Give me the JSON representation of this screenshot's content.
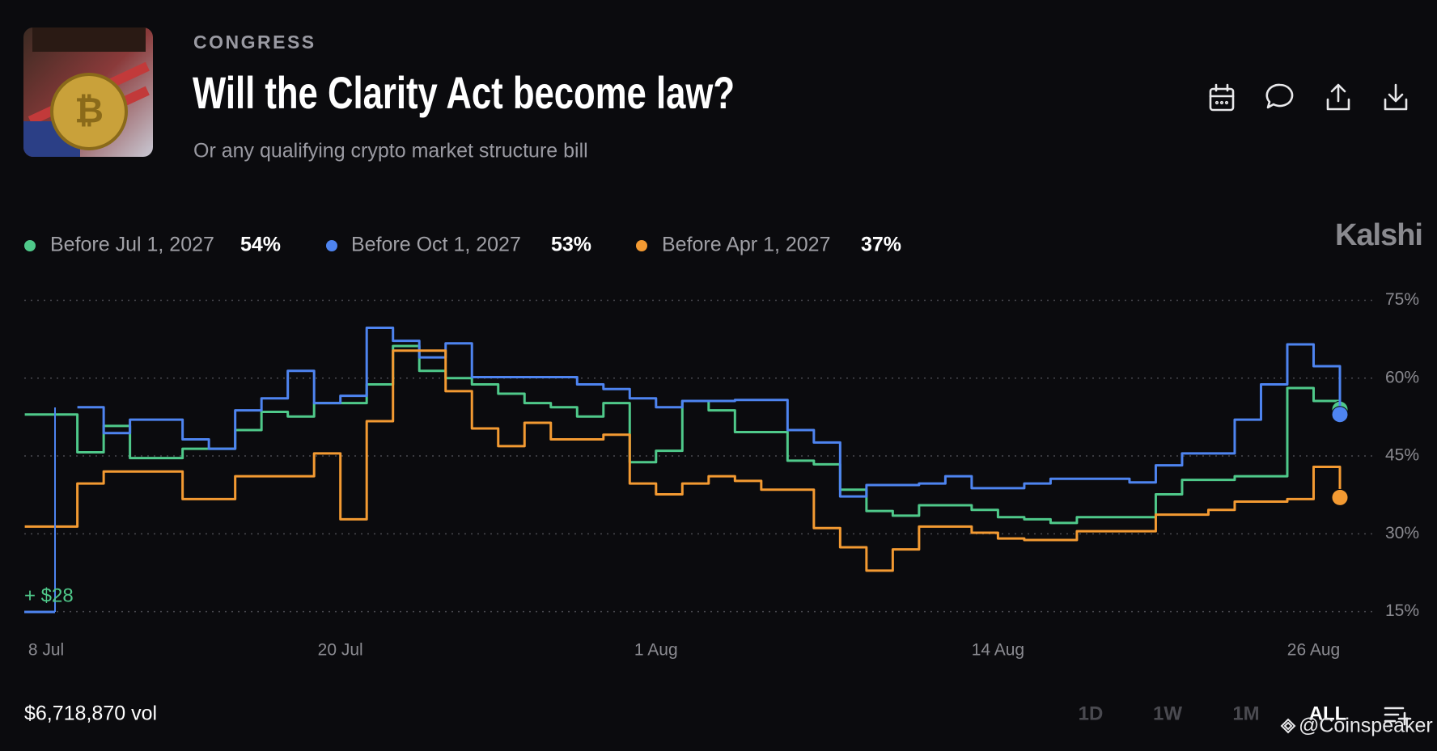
{
  "header": {
    "category": "CONGRESS",
    "title": "Will the Clarity Act become law?",
    "subtitle": "Or any qualifying crypto market structure bill",
    "brand": "Kalshi"
  },
  "chart_data": {
    "type": "line",
    "step": true,
    "categories": [
      "8 Jul",
      null,
      null,
      null,
      null,
      null,
      null,
      null,
      null,
      null,
      null,
      null,
      "20 Jul",
      null,
      null,
      null,
      null,
      null,
      null,
      null,
      null,
      null,
      null,
      null,
      "1 Aug",
      null,
      null,
      null,
      null,
      null,
      null,
      null,
      null,
      null,
      null,
      null,
      null,
      "14 Aug",
      null,
      null,
      null,
      null,
      null,
      null,
      null,
      null,
      null,
      null,
      null,
      "26 Aug",
      null
    ],
    "series": [
      {
        "name": "Before Jul 1, 2027",
        "color": "#4fc98a",
        "value_label": "54%",
        "values": [
          53,
          53,
          45.7,
          50.8,
          44.6,
          44.6,
          46.4,
          46.4,
          50,
          53.5,
          52.6,
          55.2,
          55.2,
          58.8,
          66.2,
          61.4,
          60,
          58.8,
          57,
          55.2,
          54.4,
          52.6,
          55.2,
          43.8,
          46,
          55.6,
          53.8,
          49.6,
          49.6,
          44.1,
          43.4,
          38.5,
          34.4,
          33.5,
          35.5,
          35.5,
          34.6,
          33.2,
          32.8,
          32.1,
          33.2,
          33.2,
          33.2,
          37.6,
          40.4,
          40.4,
          41.1,
          41.1,
          58.1,
          55.6,
          54
        ]
      },
      {
        "name": "Before Oct 1, 2027",
        "color": "#4e84f0",
        "value_label": "53%",
        "values": [
          null,
          null,
          54.4,
          49.4,
          52,
          52,
          48.2,
          46.4,
          53.8,
          56.1,
          61.4,
          55.2,
          56.6,
          69.7,
          67.2,
          64,
          66.7,
          60.2,
          60.2,
          60.2,
          60.2,
          58.8,
          57.9,
          56.1,
          54.4,
          55.6,
          55.6,
          55.8,
          55.8,
          50,
          47.6,
          37.2,
          39.4,
          39.4,
          39.7,
          41.1,
          38.8,
          38.8,
          39.7,
          40.6,
          40.6,
          40.6,
          39.9,
          43.2,
          45.5,
          45.5,
          52,
          58.8,
          66.5,
          62.3,
          53
        ]
      },
      {
        "name": "Before Apr 1, 2027",
        "color": "#f39a32",
        "value_label": "37%",
        "values": [
          31.4,
          31.4,
          39.7,
          42,
          42,
          42,
          36.7,
          36.7,
          41.1,
          41.1,
          41.1,
          45.5,
          32.8,
          51.7,
          65.3,
          65.3,
          57.5,
          50.3,
          46.9,
          51.4,
          48.2,
          48.2,
          49.1,
          39.7,
          37.6,
          39.7,
          41.1,
          40.2,
          38.5,
          38.5,
          31.1,
          27.4,
          22.9,
          27,
          31.4,
          31.4,
          30.2,
          29.1,
          28.8,
          28.8,
          30.5,
          30.5,
          30.5,
          33.7,
          33.7,
          34.6,
          36.2,
          36.2,
          36.7,
          42.9,
          37
        ]
      }
    ],
    "ylim": [
      15,
      75
    ],
    "yticks": [
      {
        "value": 15,
        "label": "15%"
      },
      {
        "value": 30,
        "label": "30%"
      },
      {
        "value": 45,
        "label": "45%"
      },
      {
        "value": 60,
        "label": "60%"
      },
      {
        "value": 75,
        "label": "75%"
      }
    ],
    "grid": true,
    "annotation": "+ $28"
  },
  "footer": {
    "volume": "$6,718,870 vol",
    "ranges": [
      "1D",
      "1W",
      "1M",
      "ALL"
    ],
    "active_range": 3,
    "watermark": "@Coinspeaker"
  }
}
